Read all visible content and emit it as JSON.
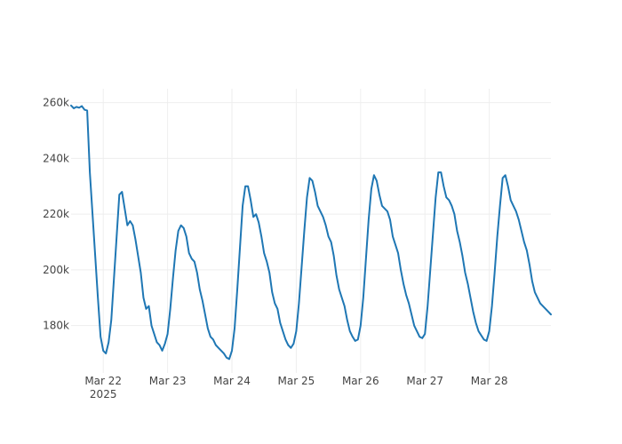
{
  "chart_data": {
    "type": "line",
    "title": "",
    "xlabel": "",
    "ylabel": "",
    "grid": true,
    "legend": "none",
    "line_color": "#1f77b4",
    "xlim": [
      "2025-03-21T12:00",
      "2025-03-28T23:00"
    ],
    "ylim": [
      163000,
      265000
    ],
    "y_ticks": [
      {
        "value": 180000,
        "label": "180k"
      },
      {
        "value": 200000,
        "label": "200k"
      },
      {
        "value": 220000,
        "label": "220k"
      },
      {
        "value": 240000,
        "label": "240k"
      },
      {
        "value": 260000,
        "label": "260k"
      }
    ],
    "x_ticks": [
      {
        "value": "2025-03-22",
        "label": "Mar 22",
        "sublabel": "2025"
      },
      {
        "value": "2025-03-23",
        "label": "Mar 23",
        "sublabel": ""
      },
      {
        "value": "2025-03-24",
        "label": "Mar 24",
        "sublabel": ""
      },
      {
        "value": "2025-03-25",
        "label": "Mar 25",
        "sublabel": ""
      },
      {
        "value": "2025-03-26",
        "label": "Mar 26",
        "sublabel": ""
      },
      {
        "value": "2025-03-27",
        "label": "Mar 27",
        "sublabel": ""
      },
      {
        "value": "2025-03-28",
        "label": "Mar 28",
        "sublabel": ""
      }
    ],
    "x": [
      "2025-03-21T12:00",
      "2025-03-21T13:00",
      "2025-03-21T14:00",
      "2025-03-21T15:00",
      "2025-03-21T16:00",
      "2025-03-21T17:00",
      "2025-03-21T18:00",
      "2025-03-21T19:00",
      "2025-03-21T20:00",
      "2025-03-21T21:00",
      "2025-03-21T22:00",
      "2025-03-21T23:00",
      "2025-03-22T00:00",
      "2025-03-22T01:00",
      "2025-03-22T02:00",
      "2025-03-22T03:00",
      "2025-03-22T04:00",
      "2025-03-22T05:00",
      "2025-03-22T06:00",
      "2025-03-22T07:00",
      "2025-03-22T08:00",
      "2025-03-22T09:00",
      "2025-03-22T10:00",
      "2025-03-22T11:00",
      "2025-03-22T12:00",
      "2025-03-22T13:00",
      "2025-03-22T14:00",
      "2025-03-22T15:00",
      "2025-03-22T16:00",
      "2025-03-22T17:00",
      "2025-03-22T18:00",
      "2025-03-22T19:00",
      "2025-03-22T20:00",
      "2025-03-22T21:00",
      "2025-03-22T22:00",
      "2025-03-22T23:00",
      "2025-03-23T00:00",
      "2025-03-23T01:00",
      "2025-03-23T02:00",
      "2025-03-23T03:00",
      "2025-03-23T04:00",
      "2025-03-23T05:00",
      "2025-03-23T06:00",
      "2025-03-23T07:00",
      "2025-03-23T08:00",
      "2025-03-23T09:00",
      "2025-03-23T10:00",
      "2025-03-23T11:00",
      "2025-03-23T12:00",
      "2025-03-23T13:00",
      "2025-03-23T14:00",
      "2025-03-23T15:00",
      "2025-03-23T16:00",
      "2025-03-23T17:00",
      "2025-03-23T18:00",
      "2025-03-23T19:00",
      "2025-03-23T20:00",
      "2025-03-23T21:00",
      "2025-03-23T22:00",
      "2025-03-23T23:00",
      "2025-03-24T00:00",
      "2025-03-24T01:00",
      "2025-03-24T02:00",
      "2025-03-24T03:00",
      "2025-03-24T04:00",
      "2025-03-24T05:00",
      "2025-03-24T06:00",
      "2025-03-24T07:00",
      "2025-03-24T08:00",
      "2025-03-24T09:00",
      "2025-03-24T10:00",
      "2025-03-24T11:00",
      "2025-03-24T12:00",
      "2025-03-24T13:00",
      "2025-03-24T14:00",
      "2025-03-24T15:00",
      "2025-03-24T16:00",
      "2025-03-24T17:00",
      "2025-03-24T18:00",
      "2025-03-24T19:00",
      "2025-03-24T20:00",
      "2025-03-24T21:00",
      "2025-03-24T22:00",
      "2025-03-24T23:00",
      "2025-03-25T00:00",
      "2025-03-25T01:00",
      "2025-03-25T02:00",
      "2025-03-25T03:00",
      "2025-03-25T04:00",
      "2025-03-25T05:00",
      "2025-03-25T06:00",
      "2025-03-25T07:00",
      "2025-03-25T08:00",
      "2025-03-25T09:00",
      "2025-03-25T10:00",
      "2025-03-25T11:00",
      "2025-03-25T12:00",
      "2025-03-25T13:00",
      "2025-03-25T14:00",
      "2025-03-25T15:00",
      "2025-03-25T16:00",
      "2025-03-25T17:00",
      "2025-03-25T18:00",
      "2025-03-25T19:00",
      "2025-03-25T20:00",
      "2025-03-25T21:00",
      "2025-03-25T22:00",
      "2025-03-25T23:00",
      "2025-03-26T00:00",
      "2025-03-26T01:00",
      "2025-03-26T02:00",
      "2025-03-26T03:00",
      "2025-03-26T04:00",
      "2025-03-26T05:00",
      "2025-03-26T06:00",
      "2025-03-26T07:00",
      "2025-03-26T08:00",
      "2025-03-26T09:00",
      "2025-03-26T10:00",
      "2025-03-26T11:00",
      "2025-03-26T12:00",
      "2025-03-26T13:00",
      "2025-03-26T14:00",
      "2025-03-26T15:00",
      "2025-03-26T16:00",
      "2025-03-26T17:00",
      "2025-03-26T18:00",
      "2025-03-26T19:00",
      "2025-03-26T20:00",
      "2025-03-26T21:00",
      "2025-03-26T22:00",
      "2025-03-26T23:00",
      "2025-03-27T00:00",
      "2025-03-27T01:00",
      "2025-03-27T02:00",
      "2025-03-27T03:00",
      "2025-03-27T04:00",
      "2025-03-27T05:00",
      "2025-03-27T06:00",
      "2025-03-27T07:00",
      "2025-03-27T08:00",
      "2025-03-27T09:00",
      "2025-03-27T10:00",
      "2025-03-27T11:00",
      "2025-03-27T12:00",
      "2025-03-27T13:00",
      "2025-03-27T14:00",
      "2025-03-27T15:00",
      "2025-03-27T16:00",
      "2025-03-27T17:00",
      "2025-03-27T18:00",
      "2025-03-27T19:00",
      "2025-03-27T20:00",
      "2025-03-27T21:00",
      "2025-03-27T22:00",
      "2025-03-27T23:00",
      "2025-03-28T00:00",
      "2025-03-28T01:00",
      "2025-03-28T02:00",
      "2025-03-28T03:00",
      "2025-03-28T04:00",
      "2025-03-28T05:00",
      "2025-03-28T06:00",
      "2025-03-28T07:00",
      "2025-03-28T08:00",
      "2025-03-28T09:00",
      "2025-03-28T10:00",
      "2025-03-28T11:00",
      "2025-03-28T12:00",
      "2025-03-28T13:00",
      "2025-03-28T14:00",
      "2025-03-28T15:00",
      "2025-03-28T16:00",
      "2025-03-28T17:00",
      "2025-03-28T18:00",
      "2025-03-28T19:00",
      "2025-03-28T20:00",
      "2025-03-28T21:00",
      "2025-03-28T22:00",
      "2025-03-28T23:00"
    ],
    "series": [
      {
        "values": [
          259000,
          258000,
          258500,
          258200,
          258800,
          257500,
          257200,
          235000,
          220000,
          205000,
          190000,
          176000,
          171000,
          170000,
          174000,
          182000,
          197000,
          212000,
          227000,
          228000,
          222000,
          216000,
          217500,
          216000,
          211000,
          205000,
          199000,
          190000,
          186000,
          187000,
          180000,
          177000,
          174000,
          173000,
          171000,
          173500,
          177000,
          186000,
          197000,
          207000,
          214000,
          216000,
          215000,
          212000,
          206000,
          204000,
          203000,
          199000,
          193000,
          189000,
          184000,
          179000,
          176000,
          175000,
          173000,
          172000,
          171000,
          170000,
          168500,
          168000,
          171000,
          179000,
          193000,
          208000,
          223000,
          230000,
          230000,
          225000,
          219000,
          220000,
          217000,
          212000,
          206000,
          203000,
          199000,
          192000,
          188000,
          186000,
          181000,
          178000,
          175000,
          173000,
          172000,
          173500,
          178000,
          188000,
          201000,
          214000,
          226000,
          233000,
          232000,
          228000,
          223000,
          221000,
          219000,
          216000,
          212000,
          210000,
          205000,
          198000,
          193000,
          190000,
          187000,
          182000,
          178000,
          176000,
          174500,
          175000,
          180000,
          190000,
          204000,
          218000,
          229000,
          234000,
          232000,
          227000,
          223000,
          222000,
          221000,
          218000,
          212000,
          209000,
          206000,
          200000,
          195000,
          191000,
          188000,
          184000,
          180000,
          178000,
          176000,
          175500,
          177000,
          187000,
          200000,
          213000,
          226000,
          235000,
          235000,
          230000,
          226000,
          225000,
          223000,
          220000,
          214000,
          210000,
          205000,
          199000,
          195000,
          190000,
          185000,
          181000,
          178000,
          176500,
          175000,
          174500,
          178000,
          187000,
          199000,
          212000,
          223000,
          233000,
          234000,
          230000,
          225000,
          223000,
          221000,
          218000,
          214000,
          210000,
          207000,
          202000,
          196000,
          192000,
          190000,
          188000,
          187000,
          186000,
          185000,
          184000
        ]
      }
    ]
  }
}
